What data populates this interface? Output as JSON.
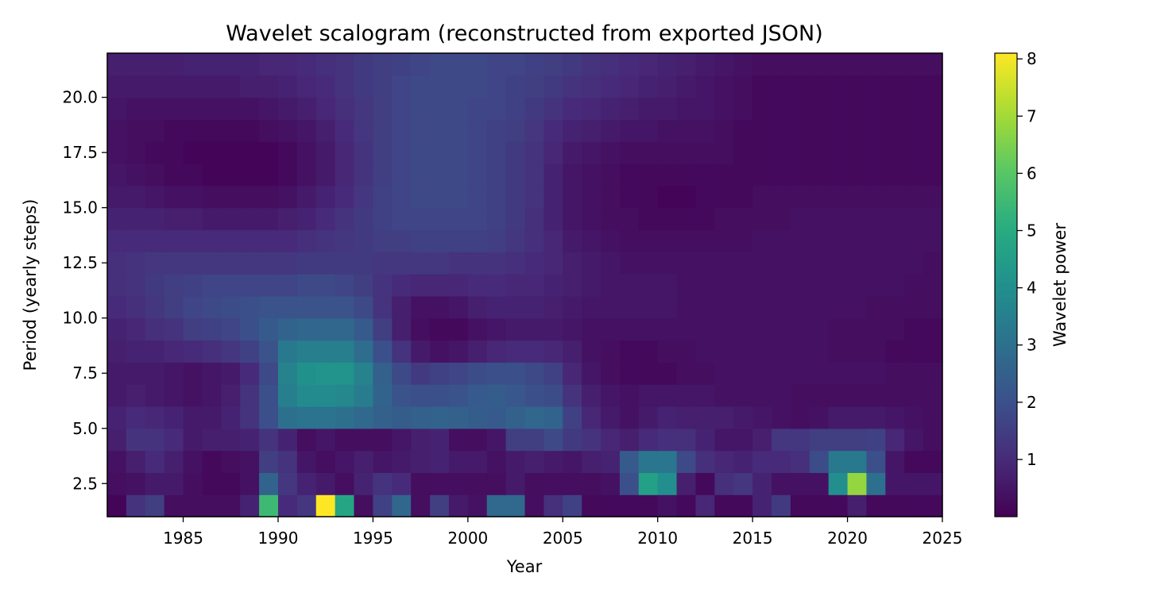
{
  "chart_data": {
    "type": "heatmap",
    "title": "Wavelet scalogram (reconstructed from exported JSON)",
    "xlabel": "Year",
    "ylabel": "Period (yearly steps)",
    "colorbar_label": "Wavelet power",
    "colormap": "viridis",
    "xlim": [
      1981,
      2025
    ],
    "ylim": [
      1,
      22
    ],
    "clim": [
      0,
      8.1
    ],
    "x_ticks": [
      1985,
      1990,
      1995,
      2000,
      2005,
      2010,
      2015,
      2020,
      2025
    ],
    "x_tick_labels": [
      "1985",
      "1990",
      "1995",
      "2000",
      "2005",
      "2010",
      "2015",
      "2020",
      "2025"
    ],
    "y_ticks": [
      2.5,
      5.0,
      7.5,
      10.0,
      12.5,
      15.0,
      17.5,
      20.0
    ],
    "y_tick_labels": [
      "2.5",
      "5.0",
      "7.5",
      "10.0",
      "12.5",
      "15.0",
      "17.5",
      "20.0"
    ],
    "colorbar_ticks": [
      1,
      2,
      3,
      4,
      5,
      6,
      7,
      8
    ],
    "colorbar_tick_labels": [
      "1",
      "2",
      "3",
      "4",
      "5",
      "6",
      "7",
      "8"
    ],
    "years": [
      1981,
      1982,
      1983,
      1984,
      1985,
      1986,
      1987,
      1988,
      1989,
      1990,
      1991,
      1992,
      1993,
      1994,
      1995,
      1996,
      1997,
      1998,
      1999,
      2000,
      2001,
      2002,
      2003,
      2004,
      2005,
      2006,
      2007,
      2008,
      2009,
      2010,
      2011,
      2012,
      2013,
      2014,
      2015,
      2016,
      2017,
      2018,
      2019,
      2020,
      2021,
      2022,
      2023,
      2024
    ],
    "period_bands": [
      {
        "period": 1.5,
        "power": [
          0.1,
          1.2,
          1.5,
          0.3,
          0.3,
          0.3,
          0.3,
          0.8,
          5.5,
          1.0,
          1.3,
          8.1,
          4.8,
          0.3,
          1.6,
          2.7,
          0.3,
          1.5,
          0.6,
          0.4,
          2.8,
          2.8,
          0.3,
          1.1,
          1.6,
          0.2,
          0.2,
          0.2,
          0.2,
          0.4,
          0.2,
          0.9,
          0.2,
          0.2,
          0.8,
          1.4,
          0.2,
          0.2,
          0.2,
          0.7,
          0.2,
          0.2,
          0.2,
          0.2
        ]
      },
      {
        "period": 2.5,
        "power": [
          0.3,
          0.4,
          0.6,
          0.6,
          0.3,
          0.2,
          0.2,
          0.4,
          2.6,
          1.3,
          0.8,
          0.6,
          0.3,
          0.8,
          1.2,
          1.0,
          0.3,
          0.3,
          0.3,
          0.3,
          0.3,
          0.6,
          0.3,
          0.3,
          0.3,
          0.3,
          0.4,
          2.0,
          4.6,
          4.0,
          0.7,
          0.2,
          1.1,
          1.3,
          0.8,
          0.4,
          0.4,
          0.4,
          4.0,
          6.8,
          3.0,
          0.5,
          0.5,
          0.5
        ]
      },
      {
        "period": 3.5,
        "power": [
          0.4,
          0.7,
          1.0,
          0.7,
          0.4,
          0.2,
          0.3,
          0.4,
          1.5,
          1.2,
          0.5,
          0.3,
          0.5,
          0.7,
          0.5,
          0.6,
          0.7,
          0.8,
          0.6,
          0.6,
          0.4,
          0.6,
          0.7,
          0.6,
          0.5,
          0.7,
          0.8,
          2.3,
          3.2,
          3.2,
          1.8,
          1.1,
          0.9,
          0.8,
          1.0,
          1.0,
          1.1,
          1.9,
          3.3,
          3.3,
          2.0,
          0.5,
          0.2,
          0.2
        ]
      },
      {
        "period": 4.5,
        "power": [
          0.7,
          1.2,
          1.2,
          1.0,
          0.6,
          0.7,
          0.7,
          0.8,
          1.2,
          0.8,
          0.3,
          0.5,
          0.3,
          0.3,
          0.3,
          0.5,
          0.7,
          0.8,
          0.3,
          0.3,
          0.5,
          1.5,
          1.5,
          1.8,
          1.4,
          1.2,
          0.9,
          0.7,
          1.0,
          1.1,
          1.1,
          0.8,
          0.5,
          0.5,
          0.7,
          1.3,
          1.3,
          1.5,
          1.5,
          1.5,
          1.6,
          0.9,
          0.5,
          0.3
        ]
      },
      {
        "period": 5.5,
        "power": [
          0.8,
          1.0,
          0.9,
          0.8,
          0.6,
          0.6,
          0.8,
          1.2,
          2.0,
          3.0,
          3.1,
          3.1,
          3.0,
          2.8,
          2.5,
          2.4,
          2.5,
          2.6,
          2.5,
          2.4,
          2.3,
          2.5,
          2.7,
          2.6,
          1.6,
          0.9,
          0.6,
          0.4,
          0.6,
          0.8,
          0.7,
          0.7,
          0.7,
          0.6,
          0.5,
          0.4,
          0.3,
          0.4,
          0.6,
          0.6,
          0.6,
          0.5,
          0.4,
          0.3
        ]
      },
      {
        "period": 6.5,
        "power": [
          0.6,
          0.7,
          0.6,
          0.5,
          0.4,
          0.5,
          0.7,
          1.2,
          2.0,
          3.5,
          3.9,
          3.9,
          3.8,
          3.4,
          2.6,
          2.1,
          2.0,
          2.0,
          2.1,
          2.3,
          2.4,
          2.2,
          2.0,
          1.9,
          1.2,
          0.7,
          0.5,
          0.4,
          0.5,
          0.5,
          0.5,
          0.5,
          0.4,
          0.4,
          0.4,
          0.4,
          0.3,
          0.3,
          0.3,
          0.3,
          0.3,
          0.3,
          0.3,
          0.3
        ]
      },
      {
        "period": 7.5,
        "power": [
          0.6,
          0.6,
          0.6,
          0.5,
          0.4,
          0.5,
          0.6,
          1.0,
          1.8,
          3.6,
          4.1,
          4.2,
          4.2,
          3.6,
          2.5,
          1.8,
          1.4,
          1.6,
          1.7,
          1.9,
          2.0,
          2.0,
          1.8,
          1.6,
          0.9,
          0.5,
          0.3,
          0.2,
          0.2,
          0.2,
          0.3,
          0.3,
          0.4,
          0.4,
          0.4,
          0.4,
          0.4,
          0.4,
          0.4,
          0.4,
          0.4,
          0.3,
          0.3,
          0.3
        ]
      },
      {
        "period": 8.5,
        "power": [
          0.7,
          0.8,
          0.8,
          0.9,
          1.0,
          1.1,
          1.3,
          1.6,
          2.1,
          3.3,
          3.5,
          3.5,
          3.5,
          2.9,
          2.0,
          1.2,
          0.6,
          0.4,
          0.5,
          0.7,
          0.9,
          1.0,
          1.0,
          0.9,
          0.7,
          0.4,
          0.3,
          0.2,
          0.2,
          0.3,
          0.3,
          0.4,
          0.4,
          0.4,
          0.4,
          0.4,
          0.4,
          0.4,
          0.3,
          0.3,
          0.3,
          0.2,
          0.2,
          0.2
        ]
      },
      {
        "period": 9.5,
        "power": [
          0.8,
          0.9,
          1.1,
          1.2,
          1.5,
          1.6,
          1.7,
          2.0,
          2.3,
          2.6,
          2.7,
          2.7,
          2.7,
          2.3,
          1.5,
          0.7,
          0.3,
          0.2,
          0.2,
          0.4,
          0.5,
          0.6,
          0.6,
          0.6,
          0.5,
          0.4,
          0.4,
          0.4,
          0.4,
          0.4,
          0.4,
          0.4,
          0.4,
          0.4,
          0.4,
          0.4,
          0.4,
          0.4,
          0.3,
          0.3,
          0.3,
          0.3,
          0.2,
          0.2
        ]
      },
      {
        "period": 10.5,
        "power": [
          1.0,
          1.1,
          1.3,
          1.5,
          1.7,
          1.8,
          1.9,
          2.0,
          2.1,
          2.1,
          2.1,
          2.1,
          2.1,
          1.8,
          1.2,
          0.7,
          0.4,
          0.4,
          0.5,
          0.7,
          0.8,
          0.8,
          0.8,
          0.7,
          0.6,
          0.5,
          0.5,
          0.5,
          0.5,
          0.5,
          0.4,
          0.4,
          0.4,
          0.4,
          0.4,
          0.4,
          0.4,
          0.4,
          0.4,
          0.4,
          0.3,
          0.3,
          0.3,
          0.3
        ]
      },
      {
        "period": 11.5,
        "power": [
          1.1,
          1.2,
          1.4,
          1.5,
          1.6,
          1.7,
          1.7,
          1.7,
          1.7,
          1.7,
          1.8,
          1.8,
          1.7,
          1.5,
          1.2,
          1.0,
          0.9,
          0.9,
          0.9,
          1.0,
          1.0,
          0.9,
          0.9,
          0.8,
          0.7,
          0.6,
          0.5,
          0.5,
          0.5,
          0.5,
          0.4,
          0.4,
          0.4,
          0.4,
          0.4,
          0.4,
          0.4,
          0.4,
          0.4,
          0.4,
          0.4,
          0.4,
          0.3,
          0.3
        ]
      },
      {
        "period": 12.5,
        "power": [
          1.1,
          1.2,
          1.3,
          1.3,
          1.3,
          1.3,
          1.3,
          1.3,
          1.3,
          1.3,
          1.4,
          1.4,
          1.4,
          1.4,
          1.3,
          1.3,
          1.3,
          1.3,
          1.2,
          1.2,
          1.2,
          1.1,
          1.0,
          0.9,
          0.7,
          0.6,
          0.5,
          0.4,
          0.4,
          0.4,
          0.4,
          0.4,
          0.4,
          0.4,
          0.4,
          0.4,
          0.4,
          0.4,
          0.4,
          0.4,
          0.4,
          0.4,
          0.4,
          0.3
        ]
      },
      {
        "period": 13.5,
        "power": [
          1.0,
          1.0,
          1.0,
          1.0,
          1.0,
          1.0,
          1.0,
          1.0,
          1.0,
          1.0,
          1.1,
          1.2,
          1.3,
          1.4,
          1.5,
          1.5,
          1.6,
          1.6,
          1.6,
          1.6,
          1.5,
          1.3,
          1.1,
          0.9,
          0.6,
          0.5,
          0.4,
          0.3,
          0.3,
          0.3,
          0.3,
          0.3,
          0.3,
          0.3,
          0.4,
          0.4,
          0.4,
          0.4,
          0.4,
          0.4,
          0.4,
          0.4,
          0.4,
          0.4
        ]
      },
      {
        "period": 14.5,
        "power": [
          0.8,
          0.8,
          0.8,
          0.7,
          0.7,
          0.6,
          0.6,
          0.6,
          0.6,
          0.7,
          0.8,
          1.0,
          1.2,
          1.4,
          1.6,
          1.7,
          1.7,
          1.7,
          1.7,
          1.7,
          1.6,
          1.4,
          1.1,
          0.8,
          0.5,
          0.4,
          0.3,
          0.3,
          0.2,
          0.2,
          0.2,
          0.2,
          0.3,
          0.3,
          0.3,
          0.3,
          0.4,
          0.4,
          0.4,
          0.4,
          0.4,
          0.4,
          0.4,
          0.4
        ]
      },
      {
        "period": 15.5,
        "power": [
          0.6,
          0.6,
          0.5,
          0.4,
          0.4,
          0.3,
          0.3,
          0.3,
          0.3,
          0.4,
          0.6,
          0.8,
          1.0,
          1.3,
          1.6,
          1.7,
          1.8,
          1.8,
          1.8,
          1.7,
          1.6,
          1.4,
          1.2,
          0.8,
          0.5,
          0.4,
          0.3,
          0.2,
          0.2,
          0.1,
          0.1,
          0.2,
          0.2,
          0.2,
          0.3,
          0.3,
          0.3,
          0.3,
          0.3,
          0.3,
          0.3,
          0.3,
          0.3,
          0.3
        ]
      },
      {
        "period": 16.5,
        "power": [
          0.5,
          0.4,
          0.3,
          0.2,
          0.2,
          0.1,
          0.1,
          0.1,
          0.1,
          0.2,
          0.4,
          0.6,
          0.9,
          1.2,
          1.5,
          1.7,
          1.8,
          1.8,
          1.8,
          1.7,
          1.6,
          1.4,
          1.2,
          0.8,
          0.5,
          0.4,
          0.3,
          0.2,
          0.2,
          0.2,
          0.2,
          0.2,
          0.2,
          0.2,
          0.2,
          0.2,
          0.2,
          0.2,
          0.2,
          0.2,
          0.2,
          0.2,
          0.2,
          0.2
        ]
      },
      {
        "period": 17.5,
        "power": [
          0.4,
          0.3,
          0.2,
          0.2,
          0.1,
          0.1,
          0.1,
          0.1,
          0.1,
          0.2,
          0.4,
          0.6,
          0.9,
          1.2,
          1.5,
          1.7,
          1.8,
          1.8,
          1.8,
          1.7,
          1.6,
          1.4,
          1.2,
          0.9,
          0.6,
          0.5,
          0.4,
          0.3,
          0.3,
          0.3,
          0.3,
          0.3,
          0.3,
          0.2,
          0.2,
          0.2,
          0.2,
          0.2,
          0.2,
          0.2,
          0.2,
          0.2,
          0.2,
          0.2
        ]
      },
      {
        "period": 18.5,
        "power": [
          0.4,
          0.3,
          0.3,
          0.2,
          0.2,
          0.2,
          0.2,
          0.2,
          0.3,
          0.4,
          0.5,
          0.7,
          1.0,
          1.3,
          1.5,
          1.7,
          1.8,
          1.8,
          1.8,
          1.7,
          1.6,
          1.5,
          1.3,
          1.0,
          0.8,
          0.7,
          0.6,
          0.5,
          0.5,
          0.4,
          0.4,
          0.4,
          0.3,
          0.2,
          0.2,
          0.2,
          0.2,
          0.2,
          0.2,
          0.2,
          0.2,
          0.2,
          0.2,
          0.2
        ]
      },
      {
        "period": 19.5,
        "power": [
          0.5,
          0.4,
          0.4,
          0.4,
          0.4,
          0.4,
          0.4,
          0.4,
          0.5,
          0.6,
          0.7,
          0.9,
          1.1,
          1.3,
          1.5,
          1.7,
          1.8,
          1.8,
          1.8,
          1.7,
          1.7,
          1.6,
          1.4,
          1.2,
          1.0,
          0.9,
          0.8,
          0.7,
          0.6,
          0.6,
          0.5,
          0.5,
          0.4,
          0.3,
          0.2,
          0.2,
          0.2,
          0.2,
          0.2,
          0.2,
          0.2,
          0.2,
          0.2,
          0.2
        ]
      },
      {
        "period": 20.5,
        "power": [
          0.6,
          0.6,
          0.6,
          0.6,
          0.6,
          0.6,
          0.6,
          0.7,
          0.7,
          0.8,
          0.9,
          1.0,
          1.2,
          1.4,
          1.5,
          1.7,
          1.8,
          1.8,
          1.8,
          1.8,
          1.7,
          1.6,
          1.5,
          1.4,
          1.2,
          1.1,
          1.0,
          0.9,
          0.8,
          0.7,
          0.6,
          0.5,
          0.4,
          0.3,
          0.2,
          0.2,
          0.2,
          0.2,
          0.2,
          0.2,
          0.2,
          0.2,
          0.2,
          0.2
        ]
      },
      {
        "period": 21.5,
        "power": [
          0.7,
          0.7,
          0.7,
          0.7,
          0.8,
          0.8,
          0.8,
          0.8,
          0.9,
          0.9,
          1.0,
          1.1,
          1.2,
          1.4,
          1.5,
          1.6,
          1.7,
          1.8,
          1.8,
          1.8,
          1.7,
          1.7,
          1.6,
          1.5,
          1.4,
          1.2,
          1.1,
          1.0,
          0.9,
          0.8,
          0.7,
          0.6,
          0.5,
          0.4,
          0.3,
          0.3,
          0.3,
          0.3,
          0.3,
          0.3,
          0.3,
          0.3,
          0.3,
          0.3
        ]
      }
    ]
  }
}
